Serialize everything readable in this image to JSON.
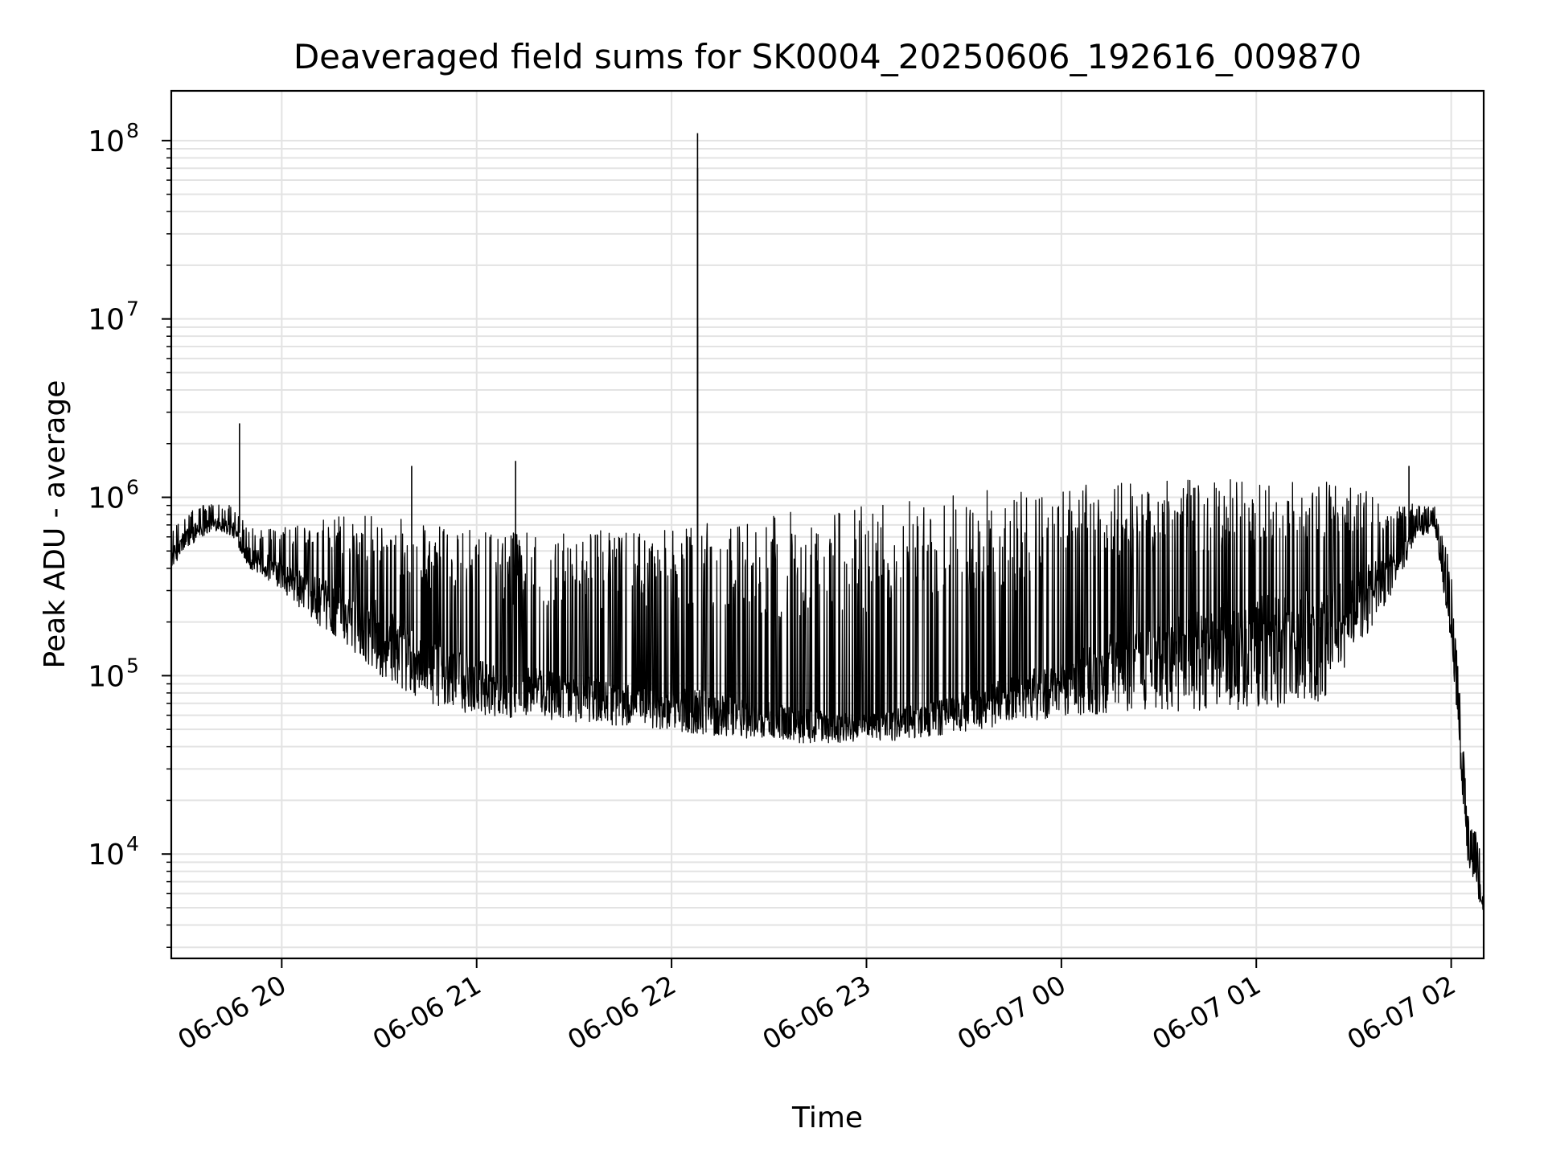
{
  "chart_data": {
    "type": "line",
    "title": "Deaveraged field sums for SK0004_20250606_192616_009870",
    "xlabel": "Time",
    "ylabel": "Peak ADU - average",
    "x_scale": "time",
    "y_scale": "log",
    "xlim": [
      "2025-06-06 19:26",
      "2025-06-07 02:10"
    ],
    "ylim": [
      2600,
      190000000
    ],
    "grid": true,
    "legend": "none",
    "line_color": "#000000",
    "x_ticks": [
      {
        "value": "2025-06-06 20:00",
        "label": "06-06 20"
      },
      {
        "value": "2025-06-06 21:00",
        "label": "06-06 21"
      },
      {
        "value": "2025-06-06 22:00",
        "label": "06-06 22"
      },
      {
        "value": "2025-06-06 23:00",
        "label": "06-06 23"
      },
      {
        "value": "2025-06-07 00:00",
        "label": "06-07 00"
      },
      {
        "value": "2025-06-07 01:00",
        "label": "06-07 01"
      },
      {
        "value": "2025-06-07 02:00",
        "label": "06-07 02"
      }
    ],
    "y_ticks": [
      {
        "value": 10000,
        "base": "10",
        "exp": "4"
      },
      {
        "value": 100000,
        "base": "10",
        "exp": "5"
      },
      {
        "value": 1000000,
        "base": "10",
        "exp": "6"
      },
      {
        "value": 10000000,
        "base": "10",
        "exp": "7"
      },
      {
        "value": 100000000,
        "base": "10",
        "exp": "8"
      }
    ],
    "series": [
      {
        "x": [
          "2025-06-06 19:26",
          "2025-06-06 19:30",
          "2025-06-06 19:35",
          "2025-06-06 19:40",
          "2025-06-06 19:45",
          "2025-06-06 19:50",
          "2025-06-06 19:55",
          "2025-06-06 20:00",
          "2025-06-06 20:10",
          "2025-06-06 20:20",
          "2025-06-06 20:30",
          "2025-06-06 20:45",
          "2025-06-06 21:00",
          "2025-06-06 21:30",
          "2025-06-06 21:58",
          "2025-06-06 22:04",
          "2025-06-06 22:20",
          "2025-06-06 22:40",
          "2025-06-06 23:00",
          "2025-06-06 23:20",
          "2025-06-06 23:40",
          "2025-06-07 00:00",
          "2025-06-07 00:20",
          "2025-06-07 00:40",
          "2025-06-07 01:00",
          "2025-06-07 01:20",
          "2025-06-07 01:40",
          "2025-06-07 01:50",
          "2025-06-07 01:55",
          "2025-06-07 02:00",
          "2025-06-07 02:05",
          "2025-06-07 02:10"
        ],
        "y": [
          500000,
          650000,
          750000,
          800000,
          720000,
          520000,
          480000,
          420000,
          350000,
          300000,
          250000,
          150000,
          120000,
          100000,
          80000,
          85000,
          75000,
          65000,
          60000,
          70000,
          90000,
          120000,
          180000,
          220000,
          260000,
          300000,
          450000,
          700000,
          750000,
          200000,
          12000,
          6000
        ],
        "lower_envelope": [
          400000,
          500000,
          600000,
          650000,
          600000,
          400000,
          350000,
          300000,
          200000,
          150000,
          100000,
          70000,
          60000,
          55000,
          50000,
          48000,
          45000,
          42000,
          42000,
          45000,
          52000,
          58000,
          62000,
          63000,
          65000,
          70000,
          250000,
          600000,
          650000,
          150000,
          9000,
          4500
        ],
        "upper_envelope": [
          650000,
          800000,
          900000,
          950000,
          900000,
          700000,
          700000,
          700000,
          750000,
          800000,
          800000,
          700000,
          650000,
          650000,
          700000,
          700000,
          750000,
          850000,
          950000,
          1050000,
          1100000,
          1150000,
          1250000,
          1300000,
          1300000,
          1300000,
          1000000,
          900000,
          900000,
          400000,
          20000,
          9000
        ],
        "spikes": [
          {
            "x": "2025-06-06 19:47",
            "y": 2600000
          },
          {
            "x": "2025-06-06 20:40",
            "y": 1500000
          },
          {
            "x": "2025-06-06 21:12",
            "y": 1600000
          },
          {
            "x": "2025-06-06 22:08",
            "y": 110000000
          },
          {
            "x": "2025-06-06 22:08",
            "y": 70000000
          },
          {
            "x": "2025-06-06 22:08",
            "y": 9000000
          },
          {
            "x": "2025-06-07 01:47",
            "y": 1500000
          }
        ]
      }
    ]
  }
}
